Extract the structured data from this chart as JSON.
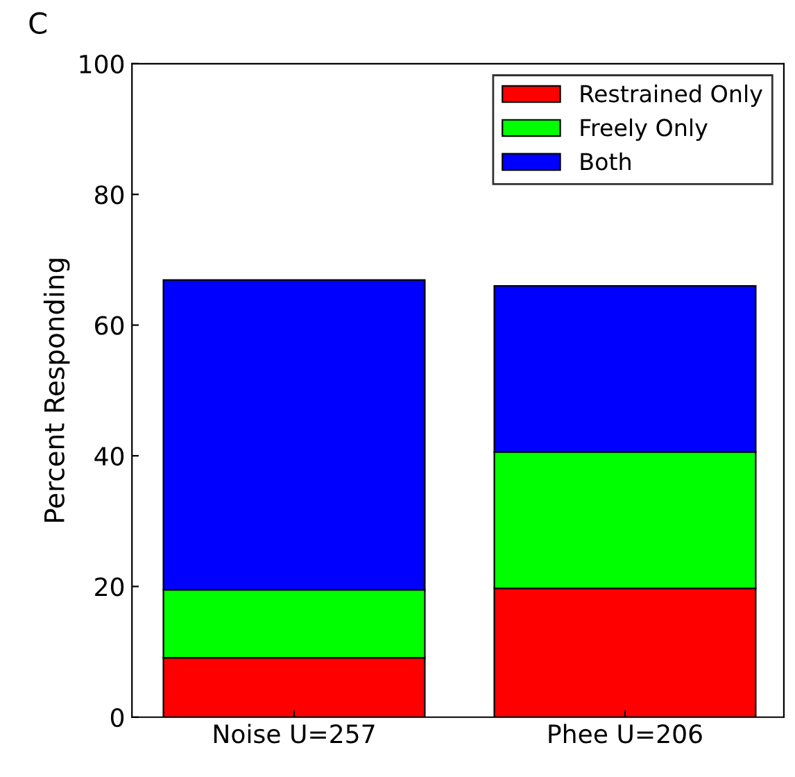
{
  "chart_data": {
    "type": "bar",
    "stacked": true,
    "ylabel": "Percent Responding",
    "annotations": [
      "C"
    ],
    "categories": [
      "Noise U=257",
      "Phee U=206"
    ],
    "series": [
      {
        "name": "Restrained Only",
        "color": "#ff0000",
        "values": [
          9.1,
          19.7
        ]
      },
      {
        "name": "Freely Only",
        "color": "#00ff00",
        "values": [
          10.4,
          20.9
        ]
      },
      {
        "name": "Both",
        "color": "#0000ff",
        "values": [
          47.4,
          25.4
        ]
      }
    ],
    "ylim": [
      0,
      100
    ],
    "yticks": [
      0,
      20,
      40,
      60,
      80,
      100
    ],
    "legend": "top right",
    "grid": false
  }
}
